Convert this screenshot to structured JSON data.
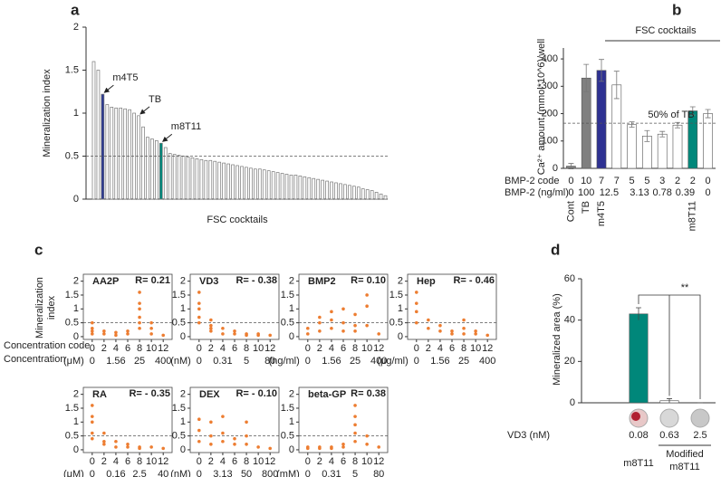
{
  "chart_data": [
    {
      "type": "bar",
      "panel": "a",
      "xlabel": "FSC cocktails",
      "ylabel": "Mineralization index",
      "values": [
        1.6,
        1.5,
        1.22,
        1.1,
        1.07,
        1.06,
        1.06,
        1.05,
        1.04,
        1.0,
        0.97,
        0.84,
        0.72,
        0.7,
        0.68,
        0.65,
        0.6,
        0.53,
        0.52,
        0.51,
        0.5,
        0.49,
        0.48,
        0.47,
        0.46,
        0.45,
        0.45,
        0.44,
        0.43,
        0.42,
        0.41,
        0.4,
        0.39,
        0.38,
        0.37,
        0.36,
        0.35,
        0.35,
        0.34,
        0.33,
        0.32,
        0.31,
        0.3,
        0.29,
        0.28,
        0.28,
        0.27,
        0.26,
        0.25,
        0.24,
        0.23,
        0.22,
        0.21,
        0.2,
        0.19,
        0.18,
        0.17,
        0.16,
        0.15,
        0.14,
        0.12,
        0.11,
        0.1,
        0.08,
        0.06,
        0.04
      ],
      "colors": [
        "#ffffff",
        "#ffffff",
        "#2b3990",
        "#ffffff",
        "#ffffff",
        "#ffffff",
        "#ffffff",
        "#ffffff",
        "#ffffff",
        "#ffffff",
        "#ffffff",
        "#ffffff",
        "#ffffff",
        "#ffffff",
        "#ffffff",
        "#00877a",
        "#ffffff",
        "#ffffff",
        "#ffffff",
        "#ffffff",
        "#ffffff",
        "#ffffff",
        "#ffffff",
        "#ffffff",
        "#ffffff",
        "#ffffff",
        "#ffffff",
        "#ffffff",
        "#ffffff",
        "#ffffff",
        "#ffffff",
        "#ffffff",
        "#ffffff",
        "#ffffff",
        "#ffffff",
        "#ffffff",
        "#ffffff",
        "#ffffff",
        "#ffffff",
        "#ffffff",
        "#ffffff",
        "#ffffff",
        "#ffffff",
        "#ffffff",
        "#ffffff",
        "#ffffff",
        "#ffffff",
        "#ffffff",
        "#ffffff",
        "#ffffff",
        "#ffffff",
        "#ffffff",
        "#ffffff",
        "#ffffff",
        "#ffffff",
        "#ffffff",
        "#ffffff",
        "#ffffff",
        "#ffffff",
        "#ffffff",
        "#ffffff",
        "#ffffff",
        "#ffffff",
        "#ffffff",
        "#ffffff",
        "#ffffff"
      ],
      "annotations": [
        {
          "text": "m4T5",
          "bar": 2
        },
        {
          "text": "TB",
          "bar": 10
        },
        {
          "text": "m8T11",
          "bar": 15
        }
      ],
      "hline": 0.5,
      "ylim": [
        0,
        2
      ],
      "yticks": [
        0,
        0.5,
        1,
        1.5,
        2
      ]
    },
    {
      "type": "errorbar",
      "panel": "b",
      "title": "FSC cocktails",
      "ylabel": "Ca²⁺ amount (mmol*10^6)/well",
      "categories": [
        "Cont",
        "TB",
        "m4T5",
        null,
        null,
        null,
        null,
        null,
        "m8T11",
        null
      ],
      "values": [
        8,
        330,
        358,
        305,
        160,
        118,
        125,
        158,
        210,
        200
      ],
      "errors": [
        10,
        50,
        40,
        50,
        10,
        20,
        10,
        10,
        15,
        15
      ],
      "colors": [
        "#808080",
        "#808080",
        "#2e3192",
        "#ffffff",
        "#ffffff",
        "#ffffff",
        "#ffffff",
        "#ffffff",
        "#00877a",
        "#ffffff"
      ],
      "hline": 165,
      "hline_label": "50% of TB",
      "row1_label": "BMP-2 code",
      "row1": [
        0,
        10,
        7,
        7,
        5,
        5,
        3,
        2,
        2,
        0
      ],
      "row2_label": "BMP-2 (ng/ml)",
      "row2": [
        0,
        100,
        12.5,
        null,
        3.13,
        null,
        0.78,
        0.39,
        null,
        0
      ],
      "ylim": [
        0,
        440
      ],
      "yticks": [
        0,
        100,
        200,
        300,
        400
      ]
    },
    {
      "type": "scatter",
      "panel": "c",
      "ylabel": [
        "Mineralization",
        "index"
      ],
      "code_label": "Concentration code",
      "conc_label": "Concentration",
      "color": "#ed7d31",
      "hline": 0.5,
      "xlim": [
        -1.5,
        13.5
      ],
      "ylim": [
        -0.1,
        2.25
      ],
      "xticks": [
        0,
        2,
        4,
        6,
        8,
        10,
        12
      ],
      "yticks": [
        0,
        0.5,
        1,
        1.5,
        2
      ],
      "panels": [
        {
          "name": "AA2P",
          "r_label": "R= 0.21",
          "unit": "(μM)",
          "conc_ticks": [
            0,
            {
              "value": 4,
              "label": "1.56"
            },
            {
              "value": 8,
              "label": "25"
            },
            {
              "value": 12,
              "label": "400"
            }
          ],
          "x": [
            0,
            0,
            0,
            0,
            2,
            2,
            4,
            4,
            6,
            6,
            8,
            8,
            8,
            8,
            8,
            8,
            10,
            10,
            10,
            12
          ],
          "y": [
            0.1,
            0.2,
            0.3,
            0.5,
            0.1,
            0.2,
            0.05,
            0.15,
            0.1,
            0.2,
            0.3,
            0.5,
            0.7,
            1.0,
            1.2,
            1.6,
            0.1,
            0.3,
            0.5,
            0.05
          ]
        },
        {
          "name": "VD3",
          "r_label": "R= - 0.38",
          "unit": "(nM)",
          "conc_ticks": [
            0,
            {
              "value": 4,
              "label": "0.31"
            },
            {
              "value": 8,
              "label": "5"
            },
            {
              "value": 12,
              "label": "80"
            }
          ],
          "x": [
            0,
            0,
            0,
            0,
            0,
            2,
            2,
            2,
            2,
            4,
            4,
            6,
            6,
            8,
            8,
            10,
            10,
            12
          ],
          "y": [
            1.6,
            1.2,
            1.0,
            0.7,
            0.5,
            0.6,
            0.4,
            0.3,
            0.2,
            0.3,
            0.1,
            0.2,
            0.1,
            0.1,
            0.05,
            0.05,
            0.1,
            0.05
          ]
        },
        {
          "name": "BMP2",
          "r_label": "R= 0.10",
          "unit": "(ng/ml)",
          "conc_ticks": [
            0,
            {
              "value": 4,
              "label": "1.56"
            },
            {
              "value": 8,
              "label": "25"
            },
            {
              "value": 12,
              "label": "400"
            }
          ],
          "x": [
            0,
            0,
            2,
            2,
            2,
            4,
            4,
            4,
            6,
            6,
            6,
            8,
            8,
            8,
            10,
            10,
            10,
            12
          ],
          "y": [
            0.1,
            0.3,
            0.5,
            0.7,
            0.2,
            0.6,
            0.9,
            0.3,
            0.5,
            0.2,
            1.0,
            0.8,
            0.4,
            0.2,
            1.5,
            1.1,
            0.4,
            0.1
          ]
        },
        {
          "name": "Hep",
          "r_label": "R= - 0.46",
          "unit": "(μg/ml)",
          "conc_ticks": [
            0,
            {
              "value": 4,
              "label": "1.56"
            },
            {
              "value": 8,
              "label": "25"
            },
            {
              "value": 12,
              "label": "400"
            }
          ],
          "x": [
            0,
            0,
            0,
            0,
            2,
            2,
            4,
            4,
            6,
            6,
            8,
            8,
            8,
            10,
            10,
            12
          ],
          "y": [
            1.6,
            1.2,
            0.9,
            0.5,
            0.6,
            0.3,
            0.4,
            0.2,
            0.2,
            0.1,
            0.6,
            0.3,
            0.1,
            0.2,
            0.1,
            0.05
          ]
        },
        {
          "name": "RA",
          "r_label": "R= - 0.35",
          "unit": "(μM)",
          "conc_ticks": [
            0,
            {
              "value": 4,
              "label": "0.16"
            },
            {
              "value": 8,
              "label": "2.5"
            },
            {
              "value": 12,
              "label": "40"
            }
          ],
          "x": [
            0,
            0,
            0,
            0,
            0,
            2,
            2,
            2,
            4,
            4,
            6,
            6,
            8,
            8,
            10,
            12
          ],
          "y": [
            1.6,
            1.2,
            1.0,
            0.6,
            0.4,
            0.6,
            0.3,
            0.2,
            0.3,
            0.1,
            0.2,
            0.1,
            0.1,
            0.05,
            0.1,
            0.05
          ]
        },
        {
          "name": "DEX",
          "r_label": "R= - 0.10",
          "unit": "(nM)",
          "conc_ticks": [
            0,
            {
              "value": 4,
              "label": "3.13"
            },
            {
              "value": 8,
              "label": "50"
            },
            {
              "value": 12,
              "label": "800"
            }
          ],
          "x": [
            0,
            0,
            0,
            2,
            2,
            2,
            4,
            4,
            4,
            6,
            6,
            8,
            8,
            8,
            10,
            12
          ],
          "y": [
            1.1,
            0.7,
            0.3,
            0.5,
            1.0,
            0.2,
            1.2,
            0.6,
            0.3,
            0.4,
            0.2,
            1.0,
            0.5,
            0.2,
            0.1,
            0.05
          ]
        },
        {
          "name": "beta-GP",
          "r_label": "R= 0.38",
          "unit": "(mM)",
          "conc_ticks": [
            0,
            {
              "value": 4,
              "label": "0.31"
            },
            {
              "value": 8,
              "label": "5"
            },
            {
              "value": 12,
              "label": "80"
            }
          ],
          "x": [
            0,
            0,
            2,
            2,
            4,
            4,
            6,
            6,
            8,
            8,
            8,
            8,
            8,
            10,
            10,
            12
          ],
          "y": [
            0.05,
            0.1,
            0.1,
            0.05,
            0.1,
            0.05,
            0.1,
            0.2,
            0.3,
            0.6,
            0.9,
            1.2,
            1.6,
            0.5,
            0.2,
            0.1
          ]
        }
      ]
    },
    {
      "type": "errorbar",
      "panel": "d",
      "ylabel": "Mineralized area (%)",
      "values": [
        43,
        1,
        0
      ],
      "errors": [
        3,
        1,
        0
      ],
      "colors": [
        "#00877a",
        "#ffffff",
        "#ffffff"
      ],
      "significance": "**",
      "row_label": "VD3 (nM)",
      "row": [
        0.08,
        0.63,
        2.5
      ],
      "group_left": "m8T11",
      "group_right": [
        "Modified",
        "m8T11"
      ],
      "ylim": [
        0,
        60
      ],
      "yticks": [
        0,
        20,
        40,
        60
      ]
    }
  ]
}
